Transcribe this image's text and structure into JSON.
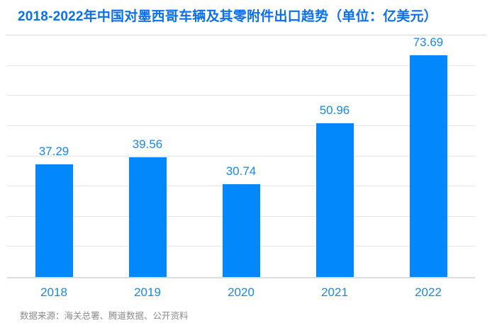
{
  "header": {
    "title": "2018-2022年中国对墨西哥车辆及其零附件出口趋势（单位：亿美元）"
  },
  "chart_data": {
    "type": "bar",
    "title": "2018-2022年中国对墨西哥车辆及其零附件出口趋势（单位：亿美元）",
    "unit_label": "亿美元",
    "categories": [
      "2018",
      "2019",
      "2020",
      "2021",
      "2022"
    ],
    "values": [
      37.29,
      39.56,
      30.74,
      50.96,
      73.69
    ],
    "value_labels": [
      "37.29",
      "39.56",
      "30.74",
      "50.96",
      "73.69"
    ],
    "xlabel": "",
    "ylabel": "",
    "ylim": [
      0,
      80
    ],
    "grid_step": 10,
    "grid": "horizontal-only",
    "y_tick_labels_shown": false,
    "legend": "none",
    "value_label_position": "above-bar",
    "colors": {
      "bar": "#0288fa",
      "title_text": "#0a70f0",
      "value_label_text": "#1787f0",
      "x_axis_label_text": "#1787f0",
      "gridline": "#e5e5e5",
      "axis_line": "#dcdcdc",
      "source_text": "#8a8a8a",
      "background": "#ffffff"
    }
  },
  "footer": {
    "source": "数据来源：海关总署、腾道数据、公开资料"
  }
}
